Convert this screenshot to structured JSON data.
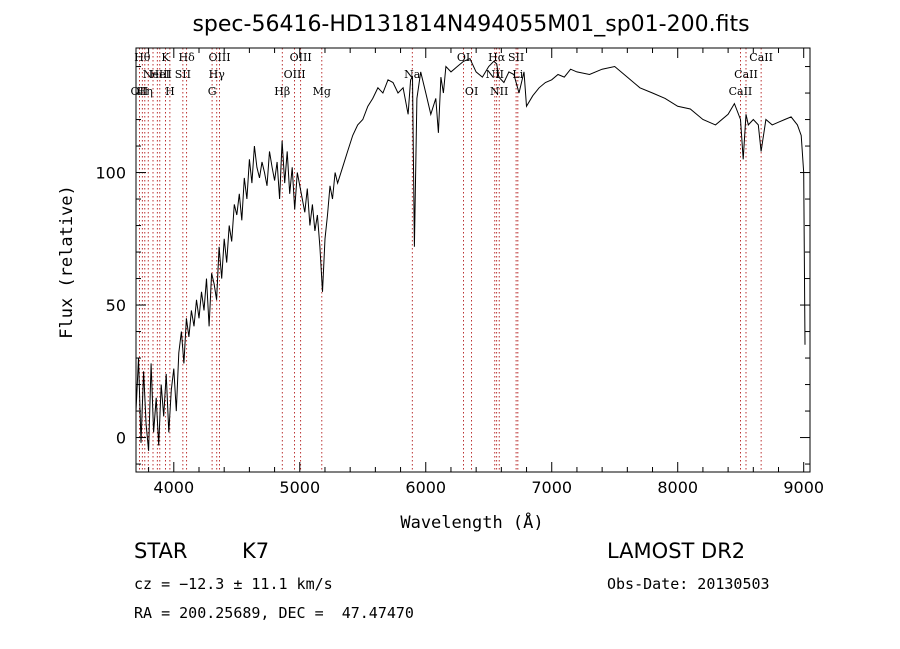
{
  "chart_data": {
    "type": "line",
    "title": "spec-56416-HD131814N494055M01_sp01-200.fits",
    "xlabel": "Wavelength (Å)",
    "ylabel": "Flux (relative)",
    "xlim": [
      3700,
      9050
    ],
    "ylim": [
      -13,
      147
    ],
    "x_ticks": [
      4000,
      5000,
      6000,
      7000,
      8000,
      9000
    ],
    "y_ticks": [
      0,
      50,
      100
    ],
    "grid": false,
    "line_color": "#000000",
    "marker_color": "#aa0000",
    "series": [
      {
        "x": [
          3700,
          3720,
          3740,
          3760,
          3780,
          3800,
          3820,
          3840,
          3860,
          3880,
          3900,
          3920,
          3940,
          3960,
          3980,
          4000,
          4020,
          4040,
          4060,
          4080,
          4100,
          4120,
          4140,
          4160,
          4180,
          4200,
          4220,
          4240,
          4260,
          4280,
          4300,
          4320,
          4340,
          4360,
          4380,
          4400,
          4420,
          4440,
          4460,
          4480,
          4500,
          4520,
          4540,
          4560,
          4580,
          4600,
          4620,
          4640,
          4660,
          4680,
          4700,
          4720,
          4740,
          4760,
          4780,
          4800,
          4820,
          4840,
          4860,
          4880,
          4900,
          4920,
          4940,
          4960,
          4980,
          5000,
          5020,
          5040,
          5060,
          5080,
          5100,
          5120,
          5140,
          5160,
          5180,
          5200,
          5220,
          5240,
          5260,
          5280,
          5300,
          5340,
          5380,
          5420,
          5460,
          5500,
          5540,
          5580,
          5620,
          5660,
          5700,
          5740,
          5780,
          5820,
          5860,
          5880,
          5895,
          5910,
          5930,
          5960,
          6000,
          6040,
          6080,
          6100,
          6120,
          6140,
          6160,
          6200,
          6250,
          6300,
          6350,
          6400,
          6450,
          6500,
          6540,
          6563,
          6580,
          6620,
          6660,
          6700,
          6740,
          6780,
          6800,
          6850,
          6900,
          6950,
          7000,
          7050,
          7100,
          7150,
          7200,
          7300,
          7400,
          7500,
          7600,
          7700,
          7800,
          7900,
          8000,
          8100,
          8200,
          8300,
          8400,
          8450,
          8498,
          8520,
          8542,
          8560,
          8600,
          8640,
          8662,
          8700,
          8750,
          8800,
          8850,
          8900,
          8950,
          8980,
          9000,
          9010
        ],
        "values": [
          10,
          30,
          -2,
          25,
          5,
          -5,
          28,
          2,
          15,
          -3,
          20,
          8,
          24,
          2,
          18,
          26,
          10,
          32,
          40,
          28,
          45,
          38,
          48,
          42,
          52,
          45,
          55,
          48,
          60,
          42,
          62,
          58,
          52,
          72,
          60,
          75,
          66,
          80,
          74,
          88,
          84,
          92,
          82,
          98,
          90,
          105,
          96,
          110,
          102,
          98,
          104,
          100,
          95,
          108,
          102,
          97,
          104,
          90,
          112,
          96,
          108,
          92,
          102,
          86,
          100,
          95,
          90,
          85,
          94,
          80,
          88,
          78,
          84,
          72,
          55,
          75,
          84,
          95,
          90,
          100,
          96,
          102,
          108,
          114,
          118,
          120,
          125,
          128,
          132,
          130,
          135,
          134,
          130,
          132,
          122,
          135,
          136,
          72,
          128,
          138,
          130,
          122,
          128,
          115,
          136,
          130,
          140,
          138,
          140,
          142,
          143,
          138,
          136,
          140,
          142,
          141,
          136,
          134,
          138,
          137,
          130,
          138,
          125,
          129,
          132,
          134,
          135,
          137,
          136,
          139,
          138,
          137,
          139,
          140,
          136,
          132,
          130,
          128,
          125,
          124,
          120,
          118,
          122,
          126,
          120,
          105,
          122,
          118,
          120,
          118,
          108,
          120,
          118,
          119,
          120,
          121,
          118,
          114,
          100,
          35
        ]
      }
    ],
    "lines": [
      {
        "w": 3727,
        "labels": [
          "OII"
        ],
        "rows": [
          2
        ]
      },
      {
        "w": 3750,
        "labels": [
          "Hθ"
        ],
        "rows": [
          0
        ]
      },
      {
        "w": 3770,
        "labels": [
          "Hη"
        ],
        "rows": [
          2
        ]
      },
      {
        "w": 3797,
        "labels": [],
        "rows": []
      },
      {
        "w": 3835,
        "labels": [],
        "rows": []
      },
      {
        "w": 3869,
        "labels": [
          "NeIII"
        ],
        "rows": [
          1
        ]
      },
      {
        "w": 3889,
        "labels": [
          "HeI"
        ],
        "rows": [
          1
        ]
      },
      {
        "w": 3934,
        "labels": [
          "K"
        ],
        "rows": [
          0
        ]
      },
      {
        "w": 3969,
        "labels": [
          "H"
        ],
        "rows": [
          2
        ]
      },
      {
        "w": 4072,
        "labels": [
          "SII"
        ],
        "rows": [
          1
        ]
      },
      {
        "w": 4102,
        "labels": [
          "Hδ"
        ],
        "rows": [
          0
        ]
      },
      {
        "w": 4304,
        "labels": [
          "G"
        ],
        "rows": [
          2
        ]
      },
      {
        "w": 4341,
        "labels": [
          "Hγ"
        ],
        "rows": [
          1
        ]
      },
      {
        "w": 4363,
        "labels": [
          "OIII"
        ],
        "rows": [
          0
        ]
      },
      {
        "w": 4861,
        "labels": [
          "Hβ"
        ],
        "rows": [
          2
        ]
      },
      {
        "w": 4959,
        "labels": [
          "OIII"
        ],
        "rows": [
          1
        ]
      },
      {
        "w": 5007,
        "labels": [
          "OIII"
        ],
        "rows": [
          0
        ]
      },
      {
        "w": 5175,
        "labels": [
          "Mg"
        ],
        "rows": [
          2
        ]
      },
      {
        "w": 5893,
        "labels": [
          "Na"
        ],
        "rows": [
          1
        ]
      },
      {
        "w": 6300,
        "labels": [
          "OI"
        ],
        "rows": [
          0
        ]
      },
      {
        "w": 6364,
        "labels": [
          "OI"
        ],
        "rows": [
          2
        ]
      },
      {
        "w": 6548,
        "labels": [
          "NII"
        ],
        "rows": [
          1
        ]
      },
      {
        "w": 6563,
        "labels": [
          "Hα"
        ],
        "rows": [
          0
        ]
      },
      {
        "w": 6583,
        "labels": [
          "NII"
        ],
        "rows": [
          2
        ]
      },
      {
        "w": 6717,
        "labels": [
          "SII"
        ],
        "rows": [
          0
        ]
      },
      {
        "w": 6731,
        "labels": [
          "Li"
        ],
        "rows": [
          1
        ]
      },
      {
        "w": 8498,
        "labels": [
          "CaII"
        ],
        "rows": [
          2
        ]
      },
      {
        "w": 8542,
        "labels": [
          "CaII"
        ],
        "rows": [
          1
        ]
      },
      {
        "w": 8662,
        "labels": [
          "CaII"
        ],
        "rows": [
          0
        ]
      }
    ]
  },
  "info": {
    "class": "STAR",
    "subclass": "K7",
    "survey": "LAMOST DR2",
    "cz": "cz = −12.3 ± 11.1 km/s",
    "obs_date": "Obs-Date: 20130503",
    "radec": "RA = 200.25689, DEC =  47.47470"
  }
}
